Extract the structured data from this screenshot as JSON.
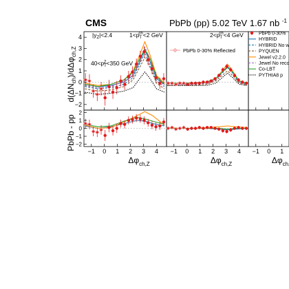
{
  "header": {
    "cms_label": "CMS",
    "energy_label": "PbPb (pp) 5.02 TeV 1.67 nb"
  },
  "labels": {
    "rapidity_cut": "|y",
    "rapidity_cut_tail": "|<2.4",
    "ptz_cut": "40<p",
    "ptz_cut_tail": "<350 GeV",
    "ylabel_top": "d(ΔN",
    "ylabel_top_tail": ")/dΔφ",
    "ylabel_bottom": "PbPb - pp",
    "xlabel": "Δφ",
    "xlabel_sub": "ch,Z"
  },
  "panels": [
    {
      "pt_bin_prefix": "1<p",
      "pt_bin_suffix": "<2 GeV"
    },
    {
      "pt_bin_prefix": "2<p",
      "pt_bin_suffix": "<4 GeV"
    },
    {
      "pt_bin_prefix": "",
      "pt_bin_suffix": ""
    }
  ],
  "reflected_label": "PbPb 0-30% Reflected",
  "legend": [
    {
      "label": "PbPb 0-30%",
      "color": "#e41a1c",
      "style": "marker"
    },
    {
      "label": "HYBRID",
      "color": "#1f77b4",
      "style": "solid"
    },
    {
      "label": "HYBRID No wake",
      "color": "#1f77b4",
      "style": "dashed"
    },
    {
      "label": "PYQUEN",
      "color": "#8b5a2b",
      "style": "dashed"
    },
    {
      "label": "Jewel v2.2.0",
      "color": "#ff8c00",
      "style": "solid"
    },
    {
      "label": "Jewel No reco",
      "color": "#9467bd",
      "style": "dashed"
    },
    {
      "label": "Co-LBT",
      "color": "#2ca02c",
      "style": "solid"
    },
    {
      "label": "PYTHIA8 p",
      "color": "#000000",
      "style": "dotted"
    }
  ],
  "chart_data": [
    {
      "type": "line",
      "panel": "top-1",
      "xlim": [
        -1.57,
        4.71
      ],
      "ylim": [
        -2.5,
        4.5
      ],
      "x_ticks": [
        -1,
        0,
        1,
        2,
        3,
        4
      ],
      "y_ticks": [
        -2,
        -1,
        0,
        1,
        2,
        3,
        4
      ],
      "data_points": {
        "x": [
          -1.45,
          -1.15,
          -0.85,
          -0.55,
          -0.25,
          0.05,
          0.35,
          0.65,
          0.95,
          1.25,
          1.55,
          1.85,
          2.15,
          2.45,
          2.75,
          3.05,
          3.35,
          3.65,
          3.95,
          4.25,
          4.55
        ],
        "y": [
          0.2,
          0.1,
          -0.8,
          -1.1,
          -0.6,
          -1.4,
          -0.4,
          -0.9,
          -0.5,
          0.1,
          -0.2,
          0.5,
          0.9,
          1.6,
          2.3,
          2.7,
          2.0,
          1.2,
          0.4,
          -0.1,
          0.3
        ],
        "err": [
          0.6,
          0.6,
          0.6,
          0.6,
          0.6,
          0.7,
          0.6,
          0.6,
          0.6,
          0.5,
          0.5,
          0.5,
          0.5,
          0.5,
          0.5,
          0.5,
          0.5,
          0.5,
          0.5,
          0.5,
          0.5
        ]
      },
      "models": [
        {
          "name": "HYBRID",
          "x": [
            -1.5,
            -0.5,
            0.5,
            1.5,
            2.2,
            2.7,
            3.1,
            3.5,
            4.0,
            4.6
          ],
          "y": [
            -0.2,
            -0.4,
            -0.3,
            0.0,
            0.6,
            1.8,
            2.9,
            1.8,
            0.3,
            -0.2
          ]
        },
        {
          "name": "HYBRID No wake",
          "x": [
            -1.5,
            -0.5,
            0.5,
            1.5,
            2.2,
            2.7,
            3.1,
            3.5,
            4.0,
            4.6
          ],
          "y": [
            -0.4,
            -0.6,
            -0.5,
            -0.2,
            0.4,
            1.6,
            2.6,
            1.5,
            0.1,
            -0.4
          ]
        },
        {
          "name": "PYQUEN",
          "x": [
            -1.5,
            -0.5,
            0.5,
            1.5,
            2.2,
            2.7,
            3.1,
            3.5,
            4.0,
            4.6
          ],
          "y": [
            -0.6,
            -0.8,
            -0.7,
            -0.4,
            0.2,
            1.3,
            2.2,
            1.3,
            -0.1,
            -0.6
          ]
        },
        {
          "name": "Jewel v2.2.0",
          "x": [
            -1.5,
            -0.5,
            0.5,
            1.5,
            2.2,
            2.7,
            3.1,
            3.5,
            4.0,
            4.6
          ],
          "y": [
            -0.1,
            -0.3,
            -0.2,
            0.2,
            1.0,
            2.4,
            3.6,
            2.4,
            0.6,
            -0.1
          ]
        },
        {
          "name": "Jewel No reco",
          "x": [
            -1.5,
            -0.5,
            0.5,
            1.5,
            2.2,
            2.7,
            3.1,
            3.5,
            4.0,
            4.6
          ],
          "y": [
            -0.3,
            -0.5,
            -0.4,
            0.1,
            0.8,
            2.0,
            3.1,
            2.0,
            0.4,
            -0.3
          ]
        },
        {
          "name": "Co-LBT",
          "x": [
            -1.5,
            -0.5,
            0.5,
            1.5,
            2.2,
            2.7,
            3.1,
            3.5,
            4.0,
            4.6
          ],
          "y": [
            -0.2,
            -0.4,
            -0.2,
            0.2,
            0.9,
            2.1,
            2.9,
            2.1,
            0.5,
            -0.2
          ]
        },
        {
          "name": "PYTHIA8",
          "x": [
            -1.5,
            -0.5,
            0.5,
            1.5,
            2.2,
            2.7,
            3.1,
            3.5,
            4.0,
            4.6
          ],
          "y": [
            -0.9,
            -1.1,
            -1.0,
            -0.8,
            -0.5,
            0.3,
            0.9,
            0.3,
            -0.6,
            -0.9
          ]
        }
      ]
    },
    {
      "type": "line",
      "panel": "top-2",
      "xlim": [
        -1.57,
        4.71
      ],
      "ylim": [
        -2.5,
        4.5
      ],
      "x_ticks": [
        -1,
        0,
        1,
        2,
        3,
        4
      ],
      "data_points": {
        "x": [
          -1.45,
          -1.15,
          -0.85,
          -0.55,
          -0.25,
          0.05,
          0.35,
          0.65,
          0.95,
          1.25,
          1.55,
          1.85,
          2.15,
          2.45,
          2.75,
          3.05,
          3.35,
          3.65,
          3.95,
          4.25,
          4.55
        ],
        "y": [
          -0.1,
          -0.1,
          -0.2,
          -0.1,
          -0.1,
          -0.2,
          -0.1,
          -0.1,
          -0.1,
          0.0,
          0.0,
          0.1,
          0.3,
          0.6,
          1.1,
          1.4,
          1.1,
          0.6,
          0.2,
          0.0,
          -0.1
        ],
        "err": [
          0.15,
          0.15,
          0.15,
          0.15,
          0.15,
          0.15,
          0.15,
          0.15,
          0.15,
          0.15,
          0.15,
          0.15,
          0.15,
          0.15,
          0.2,
          0.2,
          0.2,
          0.15,
          0.15,
          0.15,
          0.15
        ]
      },
      "models": [
        {
          "name": "HYBRID",
          "x": [
            -1.5,
            -0.5,
            0.5,
            1.5,
            2.2,
            2.7,
            3.1,
            3.5,
            4.0,
            4.6
          ],
          "y": [
            -0.1,
            -0.1,
            -0.1,
            0.0,
            0.3,
            0.9,
            1.4,
            0.9,
            0.1,
            -0.1
          ]
        },
        {
          "name": "HYBRID No wake",
          "x": [
            -1.5,
            -0.5,
            0.5,
            1.5,
            2.2,
            2.7,
            3.1,
            3.5,
            4.0,
            4.6
          ],
          "y": [
            -0.2,
            -0.2,
            -0.2,
            -0.1,
            0.2,
            0.8,
            1.3,
            0.8,
            0.0,
            -0.2
          ]
        },
        {
          "name": "PYQUEN",
          "x": [
            -1.5,
            -0.5,
            0.5,
            1.5,
            2.2,
            2.7,
            3.1,
            3.5,
            4.0,
            4.6
          ],
          "y": [
            -0.3,
            -0.3,
            -0.3,
            -0.2,
            0.1,
            0.6,
            1.0,
            0.6,
            -0.1,
            -0.3
          ]
        },
        {
          "name": "Jewel v2.2.0",
          "x": [
            -1.5,
            -0.5,
            0.5,
            1.5,
            2.2,
            2.7,
            3.1,
            3.5,
            4.0,
            4.6
          ],
          "y": [
            -0.1,
            -0.1,
            -0.1,
            0.0,
            0.3,
            1.0,
            1.6,
            1.0,
            0.1,
            -0.1
          ]
        },
        {
          "name": "Jewel No reco",
          "x": [
            -1.5,
            -0.5,
            0.5,
            1.5,
            2.2,
            2.7,
            3.1,
            3.5,
            4.0,
            4.6
          ],
          "y": [
            -0.2,
            -0.2,
            -0.2,
            -0.1,
            0.2,
            0.9,
            1.4,
            0.9,
            0.0,
            -0.2
          ]
        },
        {
          "name": "Co-LBT",
          "x": [
            -1.5,
            -0.5,
            0.5,
            1.5,
            2.2,
            2.7,
            3.1,
            3.5,
            4.0,
            4.6
          ],
          "y": [
            -0.1,
            -0.1,
            -0.1,
            0.0,
            0.3,
            0.9,
            1.3,
            0.9,
            0.1,
            -0.1
          ]
        },
        {
          "name": "PYTHIA8",
          "x": [
            -1.5,
            -0.5,
            0.5,
            1.5,
            2.2,
            2.7,
            3.1,
            3.5,
            4.0,
            4.6
          ],
          "y": [
            -0.3,
            -0.3,
            -0.3,
            -0.3,
            -0.1,
            0.4,
            0.8,
            0.4,
            -0.2,
            -0.3
          ]
        }
      ]
    },
    {
      "type": "line",
      "panel": "bottom-1",
      "xlim": [
        -1.57,
        4.71
      ],
      "ylim": [
        -2.3,
        2.3
      ],
      "x_ticks": [
        -1,
        0,
        1,
        2,
        3,
        4
      ],
      "y_ticks": [
        -2,
        -1,
        0,
        1,
        2
      ],
      "data_points": {
        "x": [
          -1.45,
          -1.15,
          -0.85,
          -0.55,
          -0.25,
          0.05,
          0.35,
          0.65,
          0.95,
          1.25,
          1.55,
          1.85,
          2.15,
          2.45,
          2.75,
          3.05,
          3.35,
          3.65,
          3.95,
          4.25,
          4.55
        ],
        "y": [
          0.6,
          0.5,
          -0.4,
          -0.5,
          -0.2,
          -0.9,
          0.1,
          -0.3,
          0.0,
          0.6,
          0.5,
          1.0,
          1.1,
          1.3,
          1.2,
          1.0,
          0.7,
          0.4,
          0.2,
          0.3,
          0.8
        ],
        "err": [
          0.6,
          0.6,
          0.6,
          0.6,
          0.6,
          0.7,
          0.6,
          0.6,
          0.6,
          0.5,
          0.5,
          0.5,
          0.5,
          0.5,
          0.5,
          0.5,
          0.5,
          0.5,
          0.5,
          0.5,
          0.5
        ]
      },
      "models": [
        {
          "name": "HYBRID",
          "x": [
            -1.5,
            -0.5,
            0.5,
            1.5,
            2.5,
            3.1,
            3.7,
            4.6
          ],
          "y": [
            0.3,
            0.0,
            0.2,
            0.6,
            1.0,
            0.9,
            0.6,
            0.3
          ]
        },
        {
          "name": "Jewel v2.2.0",
          "x": [
            -1.5,
            -0.5,
            0.5,
            1.5,
            2.5,
            3.1,
            3.7,
            4.6
          ],
          "y": [
            0.4,
            0.0,
            0.1,
            0.8,
            1.6,
            2.1,
            1.6,
            0.4
          ]
        },
        {
          "name": "Co-LBT",
          "x": [
            -1.5,
            -0.5,
            0.5,
            1.5,
            2.5,
            3.1,
            3.7,
            4.6
          ],
          "y": [
            0.5,
            0.2,
            0.3,
            0.9,
            1.4,
            1.2,
            0.9,
            0.5
          ]
        }
      ]
    },
    {
      "type": "line",
      "panel": "bottom-2",
      "xlim": [
        -1.57,
        4.71
      ],
      "ylim": [
        -2.3,
        2.3
      ],
      "x_ticks": [
        -1,
        0,
        1,
        2,
        3,
        4
      ],
      "data_points": {
        "x": [
          -1.45,
          -1.15,
          -0.85,
          -0.55,
          -0.25,
          0.05,
          0.35,
          0.65,
          0.95,
          1.25,
          1.55,
          1.85,
          2.15,
          2.45,
          2.75,
          3.05,
          3.35,
          3.65,
          3.95,
          4.25,
          4.55
        ],
        "y": [
          0.0,
          0.1,
          -0.1,
          0.0,
          0.1,
          -0.1,
          0.0,
          0.0,
          0.1,
          0.0,
          0.1,
          0.1,
          0.0,
          -0.1,
          -0.3,
          -0.4,
          -0.2,
          0.0,
          0.1,
          0.0,
          0.0
        ],
        "err": [
          0.2,
          0.2,
          0.2,
          0.2,
          0.2,
          0.2,
          0.2,
          0.2,
          0.2,
          0.2,
          0.2,
          0.2,
          0.2,
          0.2,
          0.25,
          0.25,
          0.25,
          0.2,
          0.2,
          0.2,
          0.2
        ]
      },
      "models": [
        {
          "name": "HYBRID",
          "x": [
            -1.5,
            -0.5,
            0.5,
            1.5,
            2.5,
            3.1,
            3.7,
            4.6
          ],
          "y": [
            0.0,
            0.0,
            0.0,
            0.0,
            -0.1,
            -0.2,
            -0.1,
            0.0
          ]
        },
        {
          "name": "Jewel v2.2.0",
          "x": [
            -1.5,
            -0.5,
            0.5,
            1.5,
            2.5,
            3.1,
            3.7,
            4.6
          ],
          "y": [
            0.1,
            0.0,
            0.0,
            0.1,
            0.2,
            0.3,
            0.2,
            0.1
          ]
        },
        {
          "name": "Co-LBT",
          "x": [
            -1.5,
            -0.5,
            0.5,
            1.5,
            2.5,
            3.1,
            3.7,
            4.6
          ],
          "y": [
            0.0,
            0.0,
            0.0,
            0.0,
            0.0,
            -0.1,
            0.0,
            0.0
          ]
        }
      ]
    }
  ],
  "colors": {
    "data": "#e41a1c",
    "HYBRID": "#1f77b4",
    "HYBRID No wake": "#1f77b4",
    "PYQUEN": "#8b5a2b",
    "Jewel v2.2.0": "#ff8c00",
    "Jewel No reco": "#9467bd",
    "Co-LBT": "#2ca02c",
    "PYTHIA8": "#000000",
    "reflected": "#f4a0a0"
  }
}
